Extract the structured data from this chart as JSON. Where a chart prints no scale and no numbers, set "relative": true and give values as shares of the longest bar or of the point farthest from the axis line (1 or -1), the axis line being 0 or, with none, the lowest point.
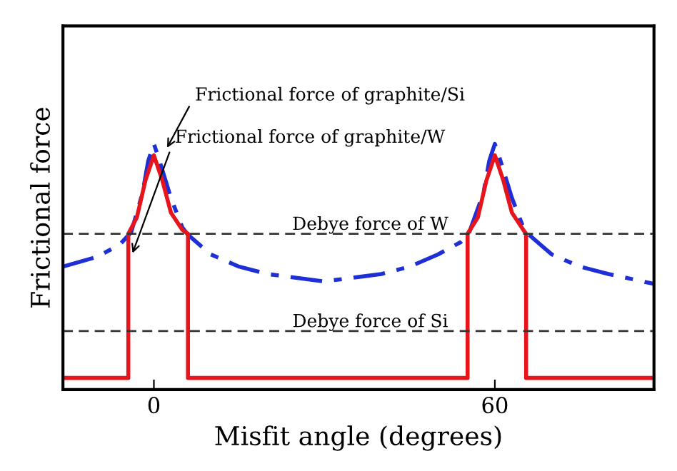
{
  "chart_data": {
    "type": "line",
    "relative": true,
    "xlabel": "Misfit angle (degrees)",
    "ylabel": "Frictional force",
    "xlim": [
      -16,
      88
    ],
    "xticks": [
      0,
      60
    ],
    "tick_labels": "x",
    "grid": false,
    "legend": false,
    "series": [
      {
        "color": "#1f2fd6",
        "line_style": "dashdot",
        "x": [
          -16,
          -10,
          -6,
          -4,
          -2,
          -1,
          0,
          1,
          3,
          5,
          6,
          10,
          15,
          20,
          30,
          40,
          45,
          50,
          54,
          55.5,
          58,
          59,
          60,
          61,
          63,
          65,
          66,
          70,
          75,
          80,
          88
        ],
        "values": [
          0.5,
          0.54,
          0.59,
          0.64,
          0.8,
          0.93,
          1.0,
          0.93,
          0.78,
          0.66,
          0.63,
          0.55,
          0.5,
          0.47,
          0.44,
          0.47,
          0.5,
          0.55,
          0.6,
          0.64,
          0.8,
          0.93,
          1.0,
          0.93,
          0.78,
          0.66,
          0.63,
          0.55,
          0.5,
          0.47,
          0.43
        ]
      },
      {
        "color": "#e8141c",
        "line_style": "solid",
        "x": [
          -16,
          -4.5,
          -4.5,
          -3,
          -1.5,
          0,
          1.5,
          3,
          5,
          6,
          6,
          55.2,
          55.2,
          57,
          58.5,
          60,
          61.5,
          63,
          65,
          65.5,
          65.5,
          88
        ],
        "values": [
          0.047,
          0.047,
          0.634,
          0.7,
          0.85,
          0.953,
          0.85,
          0.72,
          0.65,
          0.634,
          0.047,
          0.047,
          0.634,
          0.7,
          0.85,
          0.953,
          0.85,
          0.72,
          0.65,
          0.634,
          0.047,
          0.047
        ]
      }
    ],
    "ref_lines": [
      {
        "axis": "y",
        "value": 0.634,
        "label": "Debye force of W",
        "color": "#333333",
        "line_style": "dashed"
      },
      {
        "axis": "y",
        "value": 0.238,
        "label": "Debye force of Si",
        "color": "#333333",
        "line_style": "dashed"
      }
    ],
    "annotations": [
      {
        "text": "Frictional force of graphite/Si",
        "x": 2,
        "y": 0.97
      },
      {
        "text": "Frictional force of graphite/W",
        "x": -4,
        "y": 0.54
      }
    ]
  }
}
